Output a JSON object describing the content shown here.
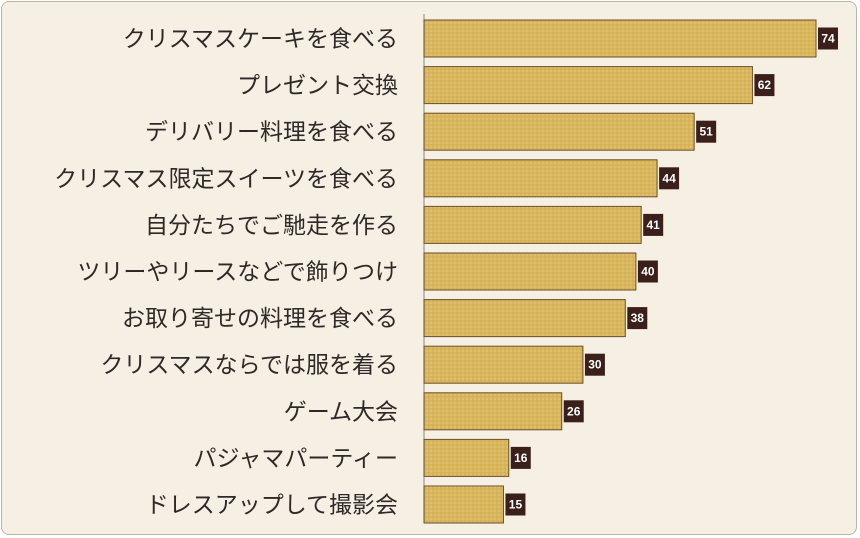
{
  "chart_data": {
    "type": "bar",
    "orientation": "horizontal",
    "categories": [
      "クリスマスケーキを食べる",
      "プレゼント交換",
      "デリバリー料理を食べる",
      "クリスマス限定スイーツを食べる",
      "自分たちでご馳走を作る",
      "ツリーやリースなどで飾りつけ",
      "お取り寄せの料理を食べる",
      "クリスマスならでは服を着る",
      "ゲーム大会",
      "パジャマパーティー",
      "ドレスアップして撮影会"
    ],
    "values": [
      74,
      62,
      51,
      44,
      41,
      40,
      38,
      30,
      26,
      16,
      15
    ],
    "xlim": [
      0,
      80
    ],
    "grid": false,
    "legend": false,
    "data_labels": true,
    "colors": {
      "bar": "#d9b65c",
      "bar_border": "#6b4f2a",
      "label_bg": "#3a1f1a",
      "background": "#f6efe4"
    }
  }
}
